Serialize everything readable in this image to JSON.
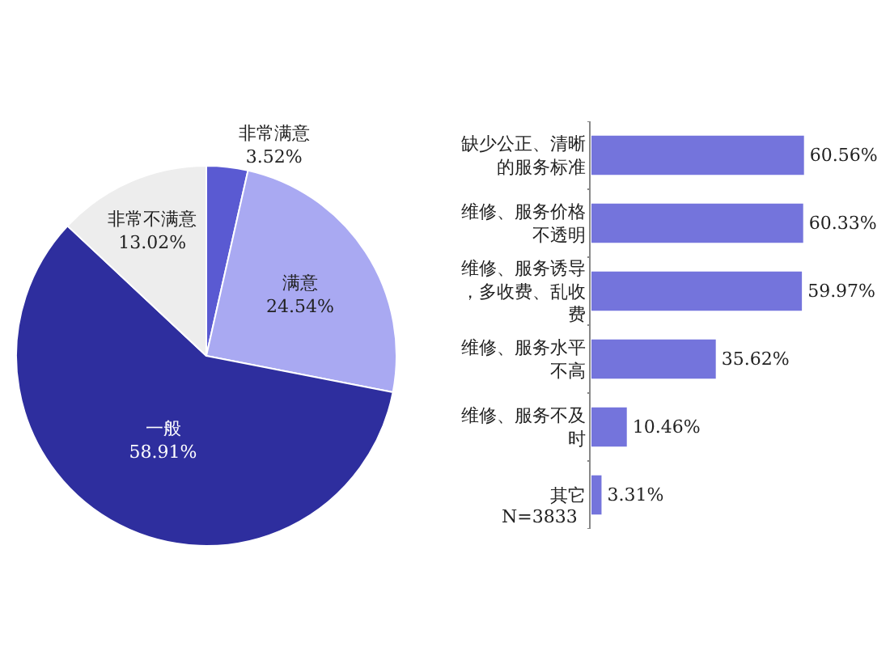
{
  "chart_data": [
    {
      "type": "pie",
      "categories": [
        "非常满意",
        "满意",
        "一般",
        "非常不满意"
      ],
      "values": [
        3.52,
        24.54,
        58.91,
        13.02
      ],
      "value_labels": [
        "3.52%",
        "24.54%",
        "58.91%",
        "13.02%"
      ],
      "colors": [
        "#5a5ad2",
        "#a9a9f2",
        "#2e2e9e",
        "#ededed"
      ],
      "legend": false
    },
    {
      "type": "bar",
      "orientation": "horizontal",
      "categories": [
        "缺少公正、清晰的服务标准",
        "维修、服务价格不透明",
        "维修、服务诱导，多收费、乱收费",
        "维修、服务水平不高",
        "维修、服务不及时",
        "其它"
      ],
      "values": [
        60.56,
        60.33,
        59.97,
        35.62,
        10.46,
        3.31
      ],
      "value_labels": [
        "60.56%",
        "60.33%",
        "59.97%",
        "35.62%",
        "10.46%",
        "3.31%"
      ],
      "color": "#7474dc",
      "annotations": [
        "N=3833"
      ],
      "legend": false
    }
  ]
}
